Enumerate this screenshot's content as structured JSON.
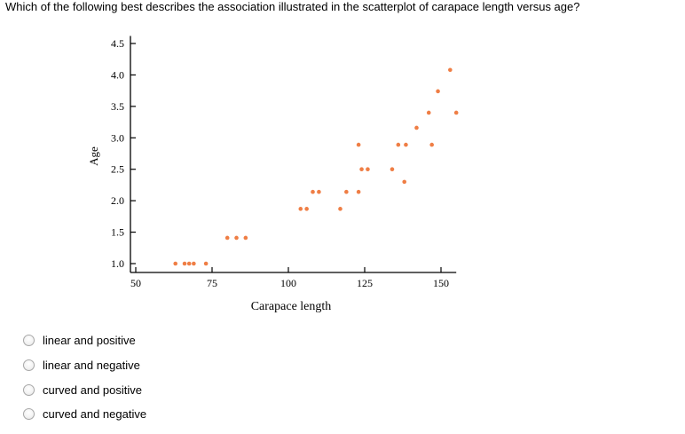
{
  "question": {
    "text": "Which of the following best describes the association illustrated in the scatterplot of carapace length versus age?"
  },
  "colors": {
    "point": "#ef7e45",
    "axis": "#000000",
    "text": "#000000",
    "radio_border": "#a8a8a8"
  },
  "chart_data": {
    "type": "scatter",
    "title": "",
    "xlabel": "Carapace length",
    "ylabel": "Age",
    "xlim": [
      47,
      155
    ],
    "ylim": [
      0.95,
      4.62
    ],
    "xticks": [
      {
        "value": 50,
        "label": "50"
      },
      {
        "value": 75,
        "label": "75"
      },
      {
        "value": 100,
        "label": "100"
      },
      {
        "value": 125,
        "label": "125"
      },
      {
        "value": 150,
        "label": "150"
      }
    ],
    "yticks": [
      {
        "value": 1.0,
        "label": "1.0"
      },
      {
        "value": 1.5,
        "label": "1.5"
      },
      {
        "value": 2.0,
        "label": "2.0"
      },
      {
        "value": 2.5,
        "label": "2.5"
      },
      {
        "value": 3.0,
        "label": "3.0"
      },
      {
        "value": 3.5,
        "label": "3.5"
      },
      {
        "value": 4.0,
        "label": "4.0"
      },
      {
        "value": 4.5,
        "label": "4.5"
      }
    ],
    "grid": false,
    "points": [
      {
        "x": 63,
        "y": 1.0
      },
      {
        "x": 66,
        "y": 1.0
      },
      {
        "x": 67.5,
        "y": 1.0
      },
      {
        "x": 69,
        "y": 1.0
      },
      {
        "x": 73,
        "y": 1.0
      },
      {
        "x": 80,
        "y": 1.41
      },
      {
        "x": 83,
        "y": 1.41
      },
      {
        "x": 86,
        "y": 1.41
      },
      {
        "x": 104,
        "y": 1.87
      },
      {
        "x": 106,
        "y": 1.87
      },
      {
        "x": 117,
        "y": 1.87
      },
      {
        "x": 108,
        "y": 2.14
      },
      {
        "x": 110,
        "y": 2.14
      },
      {
        "x": 119,
        "y": 2.14
      },
      {
        "x": 123,
        "y": 2.14
      },
      {
        "x": 124,
        "y": 2.5
      },
      {
        "x": 126,
        "y": 2.5
      },
      {
        "x": 123,
        "y": 2.89
      },
      {
        "x": 134,
        "y": 2.5
      },
      {
        "x": 138,
        "y": 2.3
      },
      {
        "x": 136,
        "y": 2.89
      },
      {
        "x": 138.5,
        "y": 2.89
      },
      {
        "x": 147,
        "y": 2.89
      },
      {
        "x": 142,
        "y": 3.16
      },
      {
        "x": 146,
        "y": 3.4
      },
      {
        "x": 155,
        "y": 3.4
      },
      {
        "x": 149,
        "y": 3.74
      },
      {
        "x": 153,
        "y": 4.08
      }
    ]
  },
  "options": [
    {
      "label": "linear and positive"
    },
    {
      "label": "linear and negative"
    },
    {
      "label": "curved and positive"
    },
    {
      "label": "curved and negative"
    }
  ]
}
